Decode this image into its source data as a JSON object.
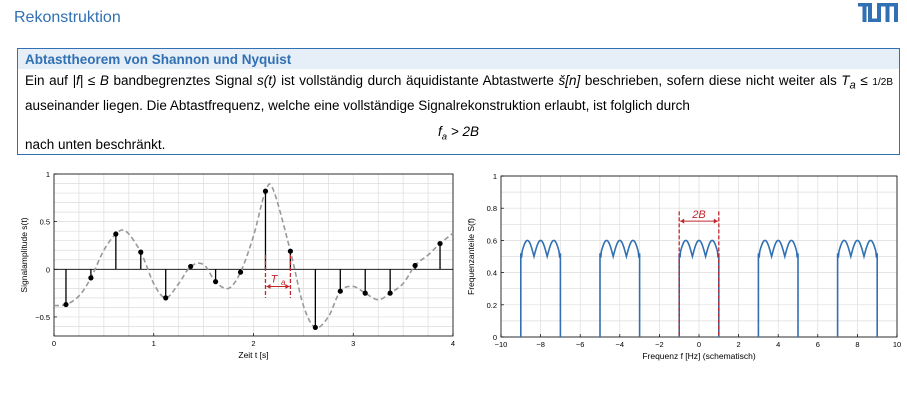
{
  "header": {
    "title": "Rekonstruktion",
    "logo_text": "TUM",
    "accent_color": "#3070b3"
  },
  "theorem": {
    "title": "Abtasttheorem von Shannon und Nyquist",
    "line1_a": "Ein auf ",
    "line1_cond": "|f| ≤ B",
    "line1_b": " bandbegrenztes Signal ",
    "line1_sig": "s(t)",
    "line1_c": " ist vollständig durch äquidistante Abtastwerte ",
    "line1_samp": "š[n]",
    "line1_d": " beschrieben, sofern diese nicht weiter als ",
    "line2_ta": "T",
    "line2_ta_sub": "a",
    "line2_le": " ≤ ",
    "line2_frac": "1/2B",
    "line2_rest": " auseinander liegen. Die Abtastfrequenz, welche eine vollständige Signalrekonstruktion erlaubt, ist folglich durch",
    "formula_f": "f",
    "formula_sub": "a",
    "formula_rest": " > 2B",
    "outro": "nach unten beschränkt."
  },
  "chart_data": [
    {
      "type": "line",
      "name": "time-domain",
      "xlabel": "Zeit t [s]",
      "ylabel": "Signalamplitude s(t)",
      "xlim": [
        0,
        4
      ],
      "ylim": [
        -0.7,
        1
      ],
      "xticks": [
        0,
        1,
        2,
        3,
        4
      ],
      "yticks": [
        -0.5,
        0,
        0.5,
        1
      ],
      "ytick_labels": [
        "−0.5",
        "0",
        "0.5",
        "1"
      ],
      "grid": true,
      "samples": {
        "t": [
          0.12,
          0.37,
          0.62,
          0.87,
          1.12,
          1.37,
          1.62,
          1.87,
          2.12,
          2.37,
          2.62,
          2.87,
          3.12,
          3.37,
          3.62,
          3.87
        ],
        "y": [
          -0.37,
          -0.09,
          0.37,
          0.18,
          -0.3,
          0.03,
          -0.13,
          -0.03,
          0.82,
          0.19,
          -0.61,
          -0.23,
          -0.25,
          -0.25,
          0.04,
          0.27
        ]
      },
      "curve": {
        "t": [
          0,
          0.12,
          0.25,
          0.37,
          0.5,
          0.62,
          0.72,
          0.87,
          1.0,
          1.12,
          1.25,
          1.37,
          1.5,
          1.62,
          1.75,
          1.87,
          2.0,
          2.12,
          2.2,
          2.37,
          2.5,
          2.62,
          2.75,
          2.87,
          3.0,
          3.12,
          3.25,
          3.37,
          3.5,
          3.62,
          3.75,
          3.87,
          4.0
        ],
        "y": [
          -0.38,
          -0.37,
          -0.28,
          -0.09,
          0.2,
          0.37,
          0.4,
          0.18,
          -0.15,
          -0.3,
          -0.15,
          0.03,
          0.05,
          -0.13,
          -0.2,
          -0.03,
          0.35,
          0.82,
          0.83,
          0.19,
          -0.38,
          -0.61,
          -0.5,
          -0.23,
          -0.18,
          -0.25,
          -0.32,
          -0.25,
          -0.15,
          0.04,
          0.15,
          0.27,
          0.38
        ]
      },
      "annotation": {
        "label": "T",
        "label_sub": "a",
        "t_start": 2.12,
        "t_end": 2.37,
        "color": "#c0272d"
      },
      "stem_color": "#000000",
      "curve_color": "#999999"
    },
    {
      "type": "line",
      "name": "frequency-domain",
      "xlabel": "Frequenz f [Hz] (schematisch)",
      "ylabel": "Frequenzanteile S(f)",
      "xlim": [
        -10,
        10
      ],
      "ylim": [
        0,
        1
      ],
      "xticks": [
        -10,
        -8,
        -6,
        -4,
        -2,
        0,
        2,
        4,
        6,
        8,
        10
      ],
      "xtick_labels": [
        "−10",
        "−8",
        "−6",
        "−4",
        "−2",
        "0",
        "2",
        "4",
        "6",
        "8",
        "10"
      ],
      "yticks": [
        0,
        0.2,
        0.4,
        0.6,
        0.8,
        1
      ],
      "grid": true,
      "spectrum_centers": [
        -8,
        -4,
        0,
        4,
        8
      ],
      "half_width": 1,
      "level": 0.5,
      "ripple_peak": 0.6,
      "series_color": "#3070b3",
      "annotation": {
        "label": "2B",
        "f_start": -1,
        "f_end": 1,
        "color": "#c0272d"
      }
    }
  ]
}
